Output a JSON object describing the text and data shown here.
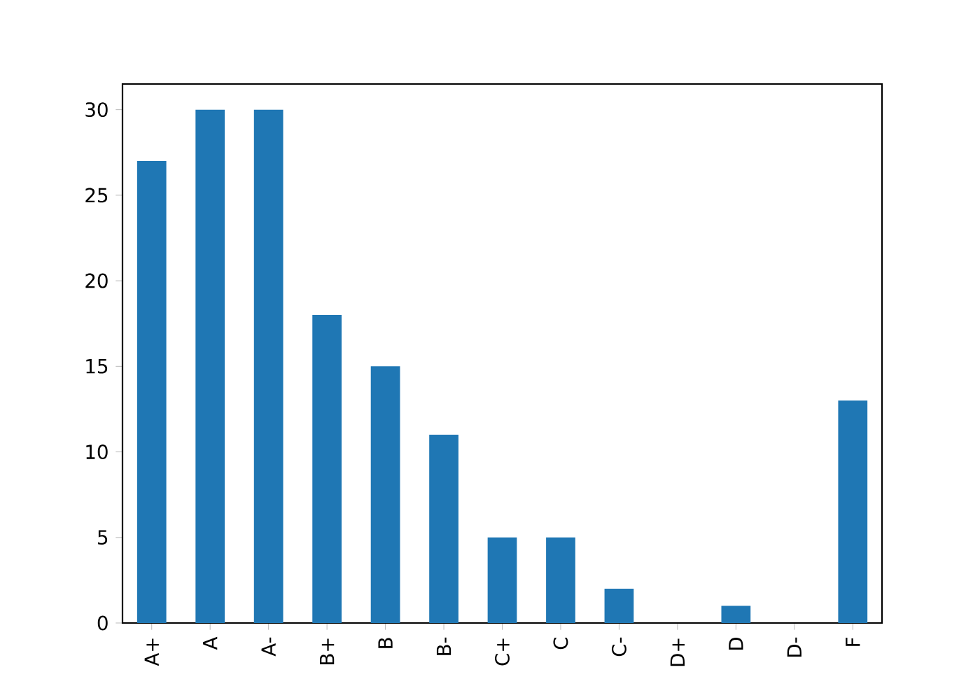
{
  "chart_data": {
    "type": "bar",
    "categories": [
      "A+",
      "A",
      "A-",
      "B+",
      "B",
      "B-",
      "C+",
      "C",
      "C-",
      "D+",
      "D",
      "D-",
      "F"
    ],
    "values": [
      27,
      30,
      30,
      18,
      15,
      11,
      5,
      5,
      2,
      0,
      1,
      0,
      13
    ],
    "color": "#1f77b4",
    "ylim": [
      0,
      31.5
    ],
    "yticks": [
      0,
      5,
      10,
      15,
      20,
      25,
      30
    ]
  }
}
